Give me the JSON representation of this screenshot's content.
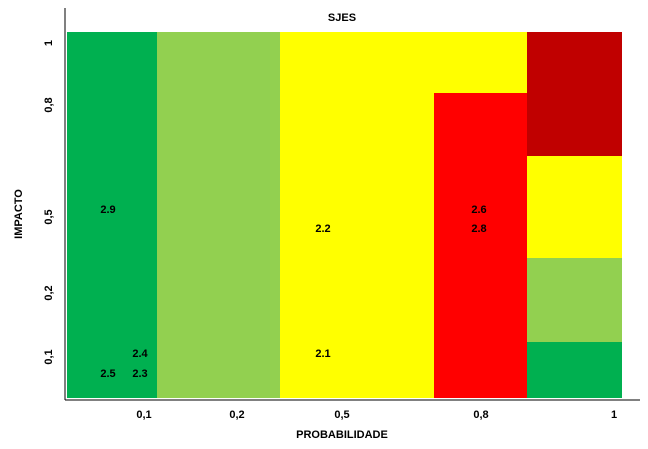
{
  "chart_data": {
    "type": "heatmap",
    "title": "SJES",
    "xlabel": "PROBABILIDADE",
    "ylabel": "IMPACTO",
    "x_ticks": [
      "0,1",
      "0,2",
      "0,5",
      "0,8",
      "1"
    ],
    "y_ticks": [
      "1",
      "0,8",
      "0,5",
      "0,2",
      "0,1"
    ],
    "zone_colors": {
      "green": "#00b050",
      "light_green": "#92d050",
      "yellow": "#ffff00",
      "red": "#ff0000",
      "dark_red": "#c00000"
    },
    "zones": [
      {
        "color": "green",
        "probability": "0,1",
        "impact": "1"
      },
      {
        "color": "light_green",
        "probability": "0,2",
        "impact": "1"
      },
      {
        "color": "yellow",
        "probability": "0,5",
        "impact": "1"
      },
      {
        "color": "red",
        "probability": "0,8",
        "impact": "0,8"
      },
      {
        "color": "dark_red",
        "probability": "1",
        "impact": "1"
      },
      {
        "color": "yellow",
        "probability": "1",
        "impact": "0,5"
      },
      {
        "color": "light_green",
        "probability": "1",
        "impact": "0,2"
      },
      {
        "color": "green",
        "probability": "1",
        "impact": "0,1"
      }
    ],
    "points": [
      {
        "label": "2.9",
        "probability": "0,1",
        "impact": "0,5"
      },
      {
        "label": "2.2",
        "probability": "0,5",
        "impact": "0,5"
      },
      {
        "label": "2.6",
        "probability": "0,8",
        "impact": "0,5"
      },
      {
        "label": "2.8",
        "probability": "0,8",
        "impact": "0,5"
      },
      {
        "label": "2.4",
        "probability": "0,1",
        "impact": "0,1"
      },
      {
        "label": "2.5",
        "probability": "0,1",
        "impact": "0,1"
      },
      {
        "label": "2.3",
        "probability": "0,1",
        "impact": "0,1"
      },
      {
        "label": "2.1",
        "probability": "0,5",
        "impact": "0,1"
      }
    ]
  }
}
